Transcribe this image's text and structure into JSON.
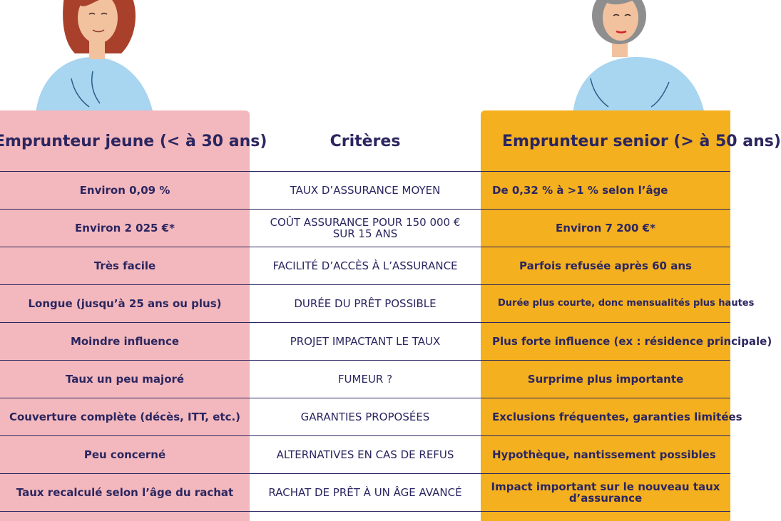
{
  "headers": {
    "young": "Emprunteur jeune (< à 30 ans)",
    "criteria": "Critères",
    "senior": "Emprunteur senior (> à 50 ans)"
  },
  "rows": [
    {
      "young": "Environ 0,09 %",
      "criteria": "TAUX D’ASSURANCE MOYEN",
      "senior": "De 0,32 % à >1 % selon l’âge"
    },
    {
      "young": "Environ 2 025 €*",
      "criteria": "COÛT ASSURANCE POUR 150 000 € SUR 15 ANS",
      "senior": "Environ 7 200 €*"
    },
    {
      "young": "Très facile",
      "criteria": "FACILITÉ D’ACCÈS À L’ASSURANCE",
      "senior": "Parfois refusée après 60 ans"
    },
    {
      "young": "Longue (jusqu’à 25 ans ou plus)",
      "criteria": "DURÉE DU PRÊT POSSIBLE",
      "senior": "Durée plus courte, donc mensualités plus hautes"
    },
    {
      "young": "Moindre influence",
      "criteria": "PROJET IMPACTANT LE TAUX",
      "senior": "Plus forte influence (ex : résidence principale)"
    },
    {
      "young": "Taux un peu majoré",
      "criteria": "FUMEUR ?",
      "senior": "Surprime plus importante"
    },
    {
      "young": "Couverture complète (décès, ITT, etc.)",
      "criteria": "GARANTIES PROPOSÉES",
      "senior": "Exclusions fréquentes, garanties limitées"
    },
    {
      "young": "Peu concerné",
      "criteria": "ALTERNATIVES EN CAS DE REFUS",
      "senior": "Hypothèque, nantissement possibles"
    },
    {
      "young": "Taux recalculé selon l’âge du rachat",
      "criteria": "RACHAT DE PRÊT À UN ÂGE AVANCÉ",
      "senior": "Impact important sur le nouveau taux d’assurance"
    }
  ],
  "colors": {
    "young_bg": "#f3b8bd",
    "senior_bg": "#f4b01f",
    "text": "#2b2660"
  }
}
